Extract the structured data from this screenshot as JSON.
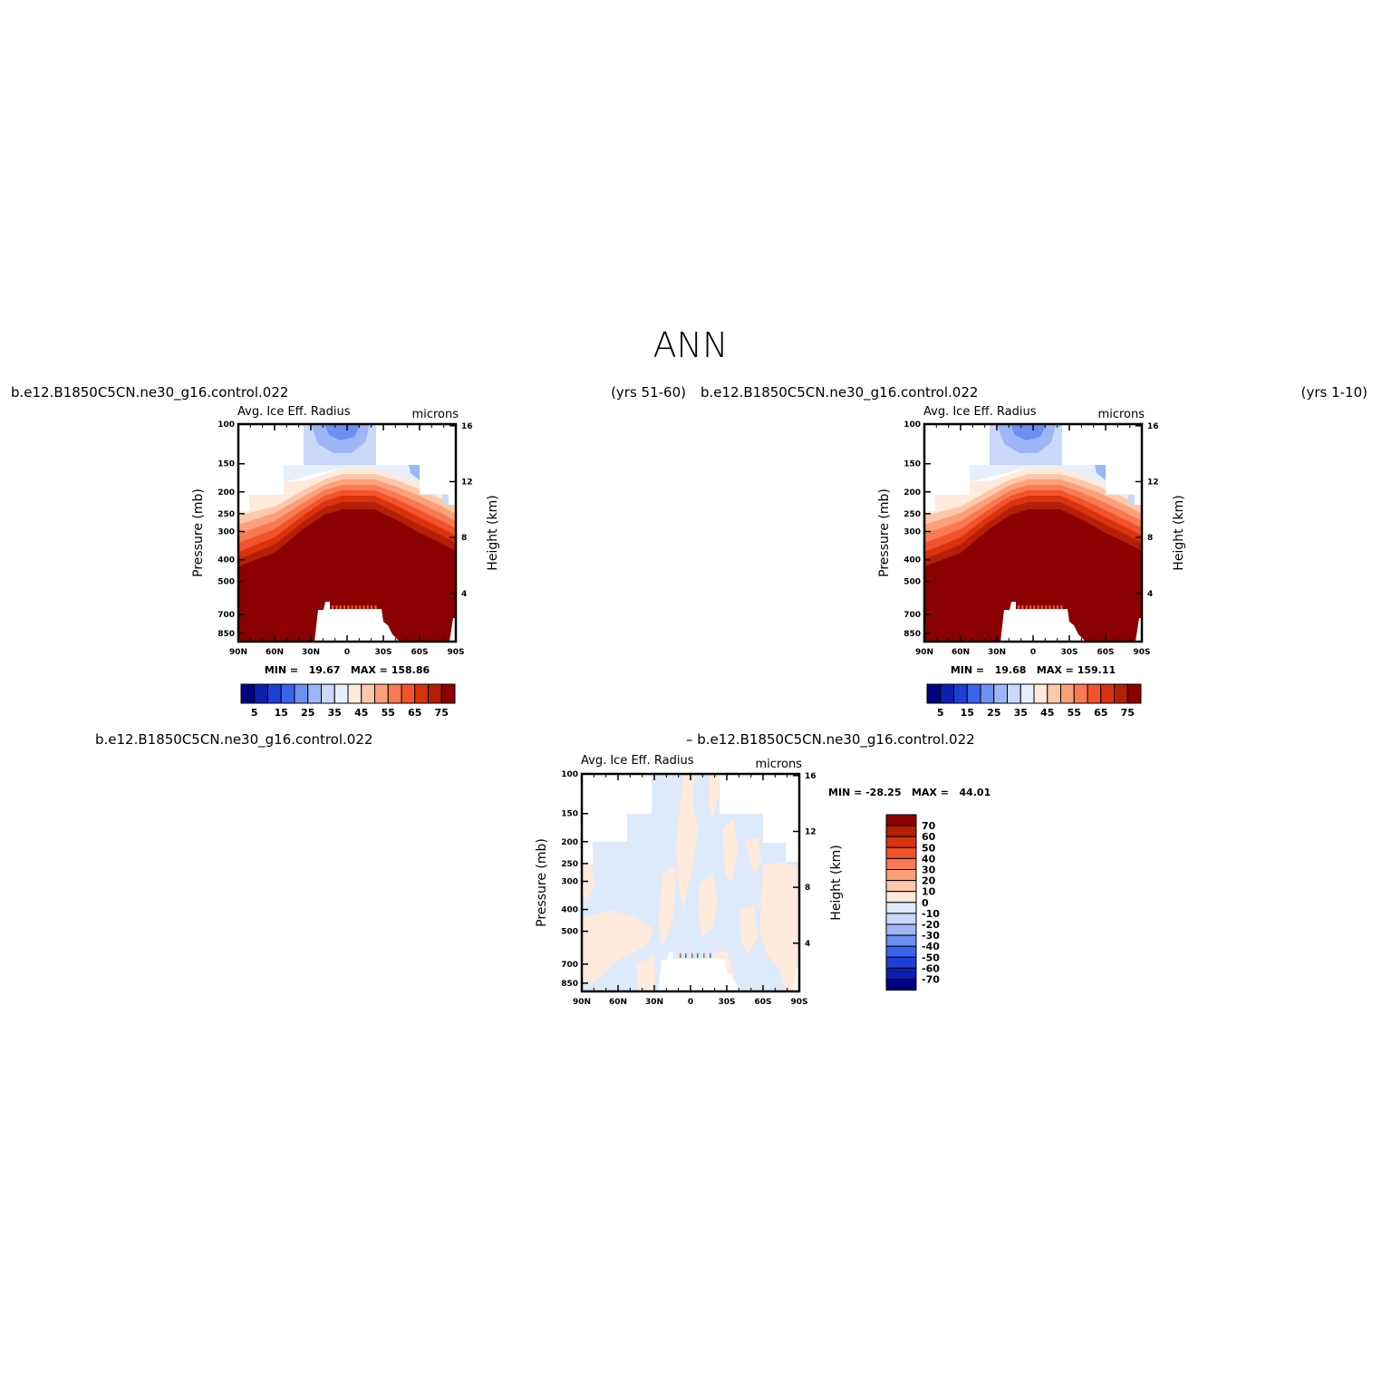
{
  "page_title": "ANN",
  "colors": {
    "abs_levels": [
      "#000080",
      "#0a1fb0",
      "#1e3fd6",
      "#3a64ec",
      "#6d8ff2",
      "#9eb6f6",
      "#c9d8fb",
      "#e6f0fd",
      "#ffeadb",
      "#fdc8aa",
      "#fca07a",
      "#f97a52",
      "#f1532c",
      "#d9320f",
      "#b51f06",
      "#8b0000"
    ],
    "diff_levels": [
      "#000080",
      "#0a1fb0",
      "#1e3fd6",
      "#3a64ec",
      "#6d8ff2",
      "#9eb6f6",
      "#c9d8fb",
      "#ddeafb",
      "#ffeadb",
      "#fdc8aa",
      "#fca07a",
      "#f97a52",
      "#f1532c",
      "#d9320f",
      "#b51f06",
      "#8b0000"
    ]
  },
  "panels": [
    {
      "case": "b.e12.B1850C5CN.ne30_g16.control.022",
      "years": "(yrs 51-60)",
      "field": "Avg. Ice Eff. Radius",
      "units": "microns",
      "minmax": "MIN =   19.67   MAX = 158.86"
    },
    {
      "case": "b.e12.B1850C5CN.ne30_g16.control.022",
      "years": "(yrs 1-10)",
      "field": "Avg. Ice Eff. Radius",
      "units": "microns",
      "minmax": "MIN =   19.68   MAX = 159.11"
    },
    {
      "case_left": "b.e12.B1850C5CN.ne30_g16.control.022",
      "case_right": "– b.e12.B1850C5CN.ne30_g16.control.022",
      "field": "Avg. Ice Eff. Radius",
      "units": "microns",
      "minmax": "MIN = -28.25   MAX =   44.01"
    }
  ],
  "chart_data": [
    {
      "type": "heatmap",
      "title": "Avg. Ice Eff. Radius",
      "units": "microns",
      "xlabel": "",
      "ylabel": "Pressure (mb)",
      "ylabel_right": "Height (km)",
      "x_ticks": [
        "90N",
        "60N",
        "30N",
        "0",
        "30S",
        "60S",
        "90S"
      ],
      "y_ticks": [
        "100",
        "150",
        "200",
        "250",
        "300",
        "400",
        "500",
        "700",
        "850"
      ],
      "y_right_ticks": [
        "4",
        "8",
        "12",
        "16"
      ],
      "min": 19.67,
      "max": 158.86,
      "colorbar_levels": [
        5,
        10,
        15,
        20,
        25,
        30,
        35,
        40,
        45,
        50,
        55,
        60,
        65,
        70,
        75
      ],
      "colorbar_labels": [
        "5",
        "15",
        "25",
        "35",
        "45",
        "55",
        "65",
        "75"
      ]
    },
    {
      "type": "heatmap",
      "title": "Avg. Ice Eff. Radius",
      "units": "microns",
      "xlabel": "",
      "ylabel": "Pressure (mb)",
      "ylabel_right": "Height (km)",
      "x_ticks": [
        "90N",
        "60N",
        "30N",
        "0",
        "30S",
        "60S",
        "90S"
      ],
      "y_ticks": [
        "100",
        "150",
        "200",
        "250",
        "300",
        "400",
        "500",
        "700",
        "850"
      ],
      "y_right_ticks": [
        "4",
        "8",
        "12",
        "16"
      ],
      "min": 19.68,
      "max": 159.11,
      "colorbar_levels": [
        5,
        10,
        15,
        20,
        25,
        30,
        35,
        40,
        45,
        50,
        55,
        60,
        65,
        70,
        75
      ],
      "colorbar_labels": [
        "5",
        "15",
        "25",
        "35",
        "45",
        "55",
        "65",
        "75"
      ]
    },
    {
      "type": "heatmap",
      "title": "Avg. Ice Eff. Radius",
      "units": "microns",
      "xlabel": "",
      "ylabel": "Pressure (mb)",
      "ylabel_right": "Height (km)",
      "x_ticks": [
        "90N",
        "60N",
        "30N",
        "0",
        "30S",
        "60S",
        "90S"
      ],
      "y_ticks": [
        "100",
        "150",
        "200",
        "250",
        "300",
        "400",
        "500",
        "700",
        "850"
      ],
      "y_right_ticks": [
        "4",
        "8",
        "12",
        "16"
      ],
      "min": -28.25,
      "max": 44.01,
      "colorbar_labels": [
        "70",
        "60",
        "50",
        "40",
        "30",
        "20",
        "10",
        "0",
        "-10",
        "-20",
        "-30",
        "-40",
        "-50",
        "-60",
        "-70"
      ]
    }
  ]
}
